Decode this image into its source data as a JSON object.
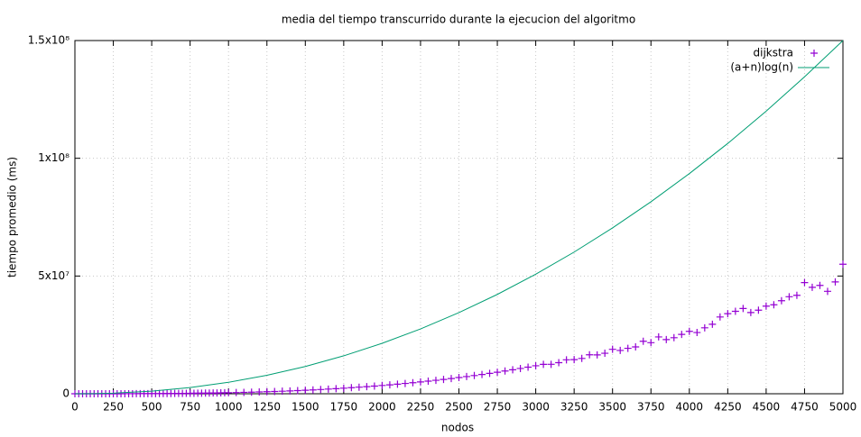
{
  "chart_data": {
    "type": "scatter",
    "title": "media del tiempo transcurrido durante la ejecucion del algoritmo",
    "x_label": "nodos",
    "y_label": "tiempo promedio (ms)",
    "xlim": [
      0,
      5000
    ],
    "ylim": [
      0,
      150000000
    ],
    "xticks": [
      0,
      250,
      500,
      750,
      1000,
      1250,
      1500,
      1750,
      2000,
      2250,
      2500,
      2750,
      3000,
      3250,
      3500,
      3750,
      4000,
      4250,
      4500,
      4750,
      5000
    ],
    "yticks": [
      0,
      {
        "value": 50000000,
        "label": "5x10⁷"
      },
      {
        "value": 100000000,
        "label": "1x10⁸"
      },
      {
        "value": 150000000,
        "label": "1.5x10⁸"
      }
    ],
    "grid": true,
    "legend": "top-right",
    "series": [
      {
        "name": "dijkstra",
        "type": "scatter",
        "color": "#9400d3",
        "x": [
          0,
          25,
          50,
          75,
          100,
          125,
          150,
          175,
          200,
          225,
          250,
          275,
          300,
          325,
          350,
          375,
          400,
          425,
          450,
          475,
          500,
          525,
          550,
          575,
          600,
          625,
          650,
          675,
          700,
          725,
          750,
          775,
          800,
          825,
          850,
          875,
          900,
          925,
          950,
          975,
          1000,
          1050,
          1100,
          1150,
          1200,
          1250,
          1300,
          1350,
          1400,
          1450,
          1500,
          1550,
          1600,
          1650,
          1700,
          1750,
          1800,
          1850,
          1900,
          1950,
          2000,
          2050,
          2100,
          2150,
          2200,
          2250,
          2300,
          2350,
          2400,
          2450,
          2500,
          2550,
          2600,
          2650,
          2700,
          2750,
          2800,
          2850,
          2900,
          2950,
          3000,
          3050,
          3100,
          3150,
          3200,
          3250,
          3300,
          3350,
          3400,
          3450,
          3500,
          3550,
          3600,
          3650,
          3700,
          3750,
          3800,
          3850,
          3900,
          3950,
          4000,
          4050,
          4100,
          4150,
          4200,
          4250,
          4300,
          4350,
          4400,
          4450,
          4500,
          4550,
          4600,
          4650,
          4700,
          4750,
          4800,
          4850,
          4900,
          4950,
          5000
        ],
        "values": [
          0,
          7,
          55,
          186,
          440,
          859,
          1485,
          2358,
          3520,
          5012,
          6875,
          9151,
          11880,
          15104,
          18865,
          23203,
          28160,
          33777,
          40095,
          47156,
          55000,
          63669,
          73205,
          83648,
          95040,
          107422,
          120835,
          135320,
          150920,
          167674,
          185625,
          204813,
          225280,
          247067,
          270215,
          294766,
          320760,
          348240,
          377245,
          407818,
          440000.0,
          510000.0,
          590000.0,
          670000.0,
          760000.0,
          860000.0,
          970000.0,
          1080000.0,
          1210000.0,
          1340000.0,
          1490000.0,
          1640000.0,
          1800000.0,
          1980000.0,
          2160000.0,
          2360000.0,
          2570000.0,
          2790000.0,
          3020000.0,
          3260000.0,
          3520000.0,
          3790000.0,
          4070000.0,
          4370000.0,
          4690000.0,
          5010000.0,
          5350000.0,
          5710000.0,
          6080000.0,
          6470000.0,
          6880000.0,
          7300000.0,
          7730000.0,
          8190000.0,
          8660000.0,
          9150000.0,
          9660000.0,
          10190000.0,
          10730000.0,
          11300000.0,
          11880000.0,
          12480000.0,
          12500000.0,
          13200000.0,
          14420000.0,
          14500000.0,
          15000000.0,
          16540000.0,
          16500000.0,
          17200000.0,
          18870000.0,
          18400000.0,
          19300000.0,
          19900000.0,
          22290000.0,
          21700000.0,
          24140000.0,
          23000000.0,
          23800000.0,
          25200000.0,
          26500000.0,
          26000000.0,
          28000000.0,
          29500000.0,
          32600000.0,
          34000000.0,
          35000000.0,
          36200000.0,
          34500000.0,
          35500000.0,
          37200000.0,
          37800000.0,
          39500000.0,
          41200000.0,
          41800000.0,
          47200000.0,
          45200000.0,
          46000000.0,
          43500000.0,
          47500000.0,
          55000000.0
        ]
      },
      {
        "name": "(a+n)log(n)",
        "type": "line",
        "color": "#009e73",
        "x": [
          0,
          125,
          250,
          500,
          750,
          1000,
          1250,
          1500,
          1750,
          2000,
          2250,
          2500,
          2750,
          3000,
          3250,
          3500,
          3750,
          4000,
          4250,
          4500,
          4750,
          5000
        ],
        "values": [
          0,
          53000,
          243000,
          1095000,
          2623000,
          4866000,
          7850000,
          11590000,
          16110000,
          21420000,
          27530000,
          34450000,
          42190000,
          50760000,
          60170000,
          70430000,
          81530000,
          93490000,
          106300000,
          120000000,
          134600000,
          150000000
        ]
      }
    ]
  }
}
